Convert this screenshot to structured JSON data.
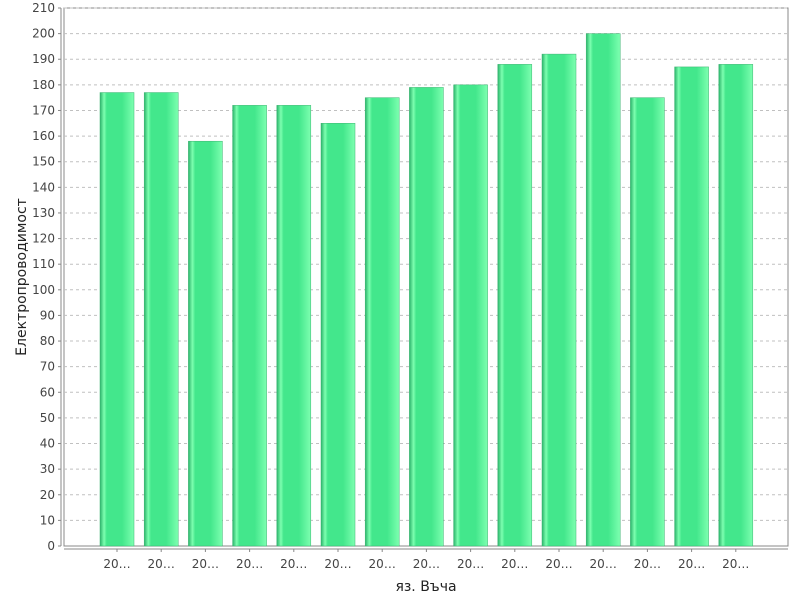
{
  "chart_data": {
    "type": "bar",
    "xlabel": "яз. Въча",
    "ylabel": "Електропроводимост",
    "ylim": [
      0,
      210
    ],
    "ytick_step": 10,
    "grid": true,
    "categories": [
      "20…",
      "20…",
      "20…",
      "20…",
      "20…",
      "20…",
      "20…",
      "20…",
      "20…",
      "20…",
      "20…",
      "20…",
      "20…",
      "20…",
      "20…"
    ],
    "values": [
      177,
      177,
      158,
      172,
      172,
      165,
      175,
      179,
      180,
      188,
      192,
      200,
      175,
      187,
      188
    ],
    "colors": {
      "bar_edge": "#3cb371",
      "bar_light": "#7dffb0",
      "bar_mid": "#43e78c",
      "bar_dark": "#2ab36a"
    }
  }
}
